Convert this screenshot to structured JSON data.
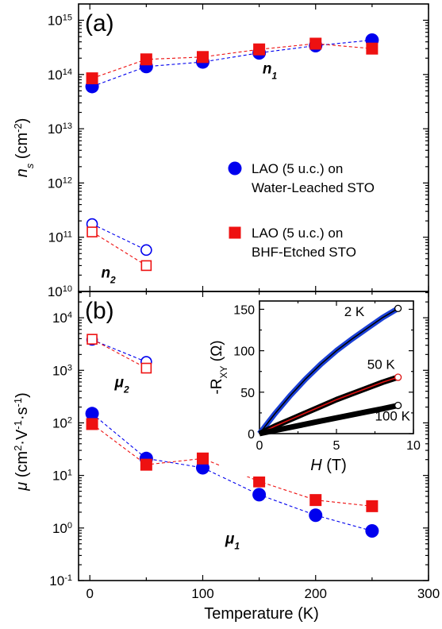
{
  "chart_data": [
    {
      "type": "scatter",
      "panel_label": "(a)",
      "xlim": [
        -10,
        300
      ],
      "ylim_log10": [
        10,
        15.3
      ],
      "ylabel": "n_s (cm^-2)",
      "ylabel_parts": {
        "main": "n",
        "sub": "s",
        "unit_open": " (cm",
        "unit_sup": "-2",
        "unit_close": ")"
      },
      "yscale": "log",
      "yticks": [
        {
          "exp": 10,
          "label": "10",
          "sup": "10"
        },
        {
          "exp": 11,
          "label": "10",
          "sup": "11"
        },
        {
          "exp": 12,
          "label": "10",
          "sup": "12"
        },
        {
          "exp": 13,
          "label": "10",
          "sup": "13"
        },
        {
          "exp": 14,
          "label": "10",
          "sup": "14"
        },
        {
          "exp": 15,
          "label": "10",
          "sup": "15"
        }
      ],
      "series": [
        {
          "name": "LAO (5 u.c.) on Water-Leached STO",
          "group": "n1",
          "marker": "circle",
          "filled": true,
          "color": "#0000ee",
          "x": [
            2,
            50,
            100,
            150,
            200,
            250
          ],
          "y": [
            60000000000000.0,
            140000000000000.0,
            170000000000000.0,
            250000000000000.0,
            340000000000000.0,
            430000000000000.0
          ]
        },
        {
          "name": "LAO (5 u.c.) on BHF-Etched STO",
          "group": "n1",
          "marker": "square",
          "filled": true,
          "color": "#ee1111",
          "x": [
            2,
            50,
            100,
            150,
            200,
            250
          ],
          "y": [
            85000000000000.0,
            190000000000000.0,
            210000000000000.0,
            290000000000000.0,
            370000000000000.0,
            300000000000000.0
          ]
        },
        {
          "group": "n2",
          "marker": "circle",
          "filled": false,
          "color": "#0000ee",
          "x": [
            2,
            50
          ],
          "y": [
            175000000000.0,
            58000000000.0
          ]
        },
        {
          "group": "n2",
          "marker": "square",
          "filled": false,
          "color": "#ee1111",
          "x": [
            2,
            50
          ],
          "y": [
            125000000000.0,
            30000000000.0
          ]
        }
      ],
      "annotations": [
        {
          "text": "n",
          "sub": "1",
          "x": 153,
          "y": 105000000000000.0
        },
        {
          "text": "n",
          "sub": "2",
          "x": 10,
          "y": 18000000000.0
        }
      ],
      "legend": {
        "placement": "right",
        "entries": [
          {
            "marker": "circle",
            "color": "#0000ee",
            "line1": "LAO (5 u.c.) on",
            "line2": "Water-Leached STO"
          },
          {
            "marker": "square",
            "color": "#ee1111",
            "line1": "LAO (5 u.c.) on",
            "line2": "BHF-Etched STO"
          }
        ]
      }
    },
    {
      "type": "scatter",
      "panel_label": "(b)",
      "xlim": [
        -10,
        300
      ],
      "ylim_log10": [
        -1,
        4.5
      ],
      "xlabel": "Temperature (K)",
      "xticks": [
        0,
        100,
        200,
        300
      ],
      "ylabel_parts": {
        "main": "μ",
        "unit_open": " (cm",
        "unit_sup1": "2",
        "unit_mid": "·V",
        "unit_sup2": "-1",
        "unit_mid2": "·s",
        "unit_sup3": "-1",
        "unit_close": ")"
      },
      "yscale": "log",
      "yticks": [
        {
          "exp": -1,
          "label": "10",
          "sup": "-1"
        },
        {
          "exp": 0,
          "label": "10",
          "sup": "0"
        },
        {
          "exp": 1,
          "label": "10",
          "sup": "1"
        },
        {
          "exp": 2,
          "label": "10",
          "sup": "2"
        },
        {
          "exp": 3,
          "label": "10",
          "sup": "3"
        },
        {
          "exp": 4,
          "label": "10",
          "sup": "4"
        }
      ],
      "series": [
        {
          "group": "mu1",
          "marker": "circle",
          "filled": true,
          "color": "#0000ee",
          "x": [
            2,
            50,
            100,
            150,
            200,
            250
          ],
          "y": [
            150,
            21,
            14,
            4.3,
            1.75,
            0.88
          ]
        },
        {
          "group": "mu1",
          "marker": "square",
          "filled": true,
          "color": "#ee1111",
          "x": [
            2,
            50,
            100,
            150,
            200,
            250
          ],
          "y": [
            95,
            16,
            21,
            7.7,
            3.4,
            2.6
          ]
        },
        {
          "group": "mu2",
          "marker": "circle",
          "filled": false,
          "color": "#0000ee",
          "x": [
            2,
            50
          ],
          "y": [
            3800,
            1450
          ]
        },
        {
          "group": "mu2",
          "marker": "square",
          "filled": false,
          "color": "#ee1111",
          "x": [
            2,
            50
          ],
          "y": [
            3900,
            1100
          ]
        }
      ],
      "annotations": [
        {
          "text": "μ",
          "sub": "2",
          "x": 22,
          "y": 480
        },
        {
          "text": "μ",
          "sub": "1",
          "x": 120,
          "y": 0.5
        }
      ]
    },
    {
      "type": "line",
      "role": "inset",
      "xlim": [
        0,
        10
      ],
      "ylim": [
        0,
        160
      ],
      "xticks": [
        0,
        5,
        10
      ],
      "yticks": [
        0,
        50,
        100,
        150
      ],
      "xlabel_parts": {
        "main": "H",
        "unit": " (T)"
      },
      "ylabel_parts": {
        "main": "-R",
        "sub": "XY",
        "unit": " (Ω)"
      },
      "series": [
        {
          "name": "2 K",
          "color": "#1a3fd6",
          "fit_color": "#000000",
          "x": [
            0,
            1,
            2,
            3,
            4,
            5,
            6,
            7,
            8,
            9
          ],
          "y": [
            0,
            24,
            46,
            66,
            84,
            100,
            114,
            127,
            140,
            151
          ]
        },
        {
          "name": "50 K",
          "color": "#000000",
          "fit_color": "#dd1111",
          "x": [
            0,
            1,
            2,
            3,
            4,
            5,
            6,
            7,
            8,
            9
          ],
          "y": [
            0,
            9,
            17,
            25,
            33,
            41,
            48,
            55,
            62,
            68
          ]
        },
        {
          "name": "100 K",
          "color": "#000000",
          "fit_color": "#000000",
          "x": [
            0,
            1,
            2,
            3,
            4,
            5,
            6,
            7,
            8,
            9
          ],
          "y": [
            0,
            3.8,
            7.6,
            11.4,
            15.2,
            19,
            22.7,
            26.4,
            30,
            34
          ]
        }
      ],
      "labels": [
        {
          "text": "2 K",
          "x": 5.5,
          "y": 142
        },
        {
          "text": "50 K",
          "x": 7.0,
          "y": 78
        },
        {
          "text": "100 K",
          "x": 7.5,
          "y": 16
        }
      ]
    }
  ]
}
